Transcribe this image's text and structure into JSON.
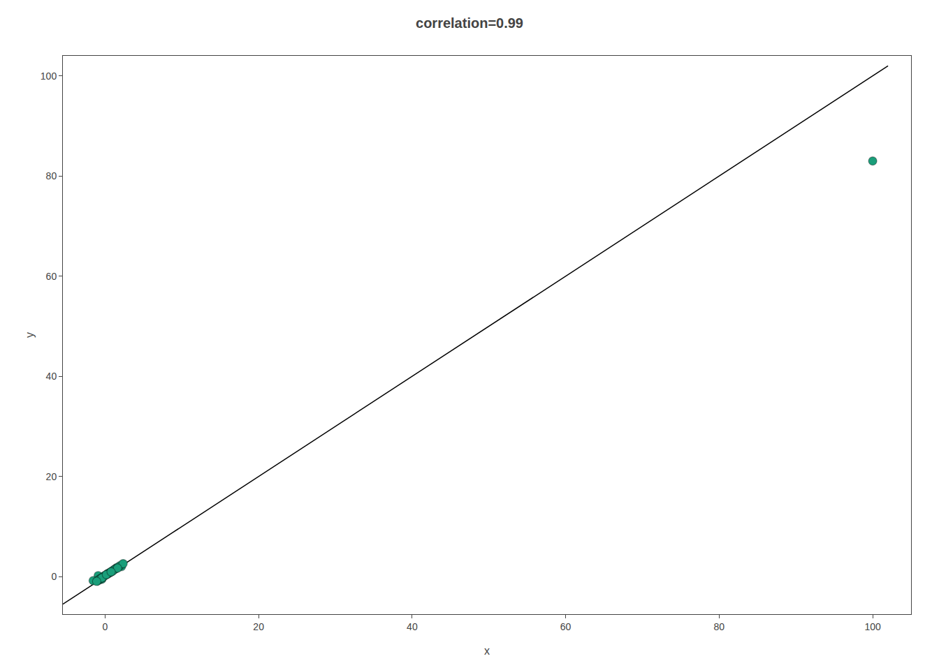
{
  "chart_data": {
    "type": "scatter",
    "title": "correlation=0.99",
    "xlabel": "x",
    "ylabel": "y",
    "xlim": [
      -5.5,
      105
    ],
    "ylim": [
      -7.5,
      104
    ],
    "xticks": [
      0,
      20,
      40,
      60,
      80,
      100
    ],
    "yticks": [
      0,
      20,
      40,
      60,
      80,
      100
    ],
    "grid": false,
    "series": [
      {
        "type": "line",
        "color": "#000000",
        "x": [
          -5.5,
          102
        ],
        "y": [
          -5.5,
          102
        ]
      },
      {
        "type": "scatter",
        "color": "#1a9e7a",
        "x": [
          -0.9,
          -0.44,
          -1.56,
          0.71,
          1.18,
          0.35,
          2.14,
          0.87,
          -0.32,
          1.52,
          -0.65,
          0.22,
          1.43,
          -0.85,
          0.55,
          1.28,
          -0.12,
          0.68,
          1.95,
          -1.03,
          0.44,
          -0.77,
          1.1,
          0.31,
          -0.53,
          1.73,
          0.08,
          -0.28,
          2.35,
          0.95,
          -0.41,
          1.62,
          0.17,
          -1.1,
          0.78
        ],
        "y": [
          0.2,
          -0.55,
          -0.8,
          0.9,
          1.4,
          0.6,
          2.0,
          1.1,
          -0.1,
          1.8,
          -0.4,
          0.45,
          1.6,
          -0.7,
          0.75,
          1.5,
          0.15,
          0.85,
          2.2,
          -0.9,
          0.65,
          -0.6,
          1.3,
          0.5,
          -0.35,
          1.9,
          0.3,
          -0.15,
          2.6,
          1.05,
          -0.25,
          1.7,
          0.4,
          -0.95,
          0.95
        ]
      },
      {
        "type": "scatter",
        "color": "#1a9e7a",
        "x": [
          100
        ],
        "y": [
          83
        ]
      }
    ]
  }
}
